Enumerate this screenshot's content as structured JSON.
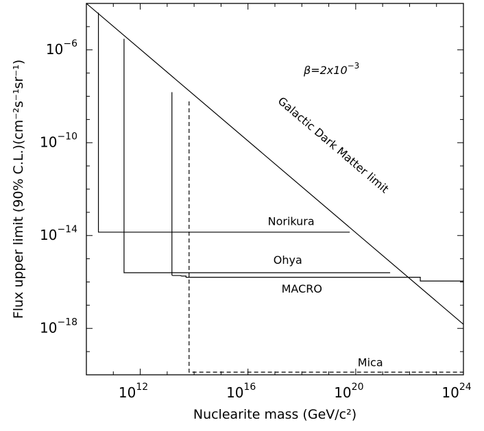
{
  "chart_data": {
    "type": "line",
    "x_scale": "log",
    "y_scale": "log",
    "xlim": [
      10000000000.0,
      1e+24
    ],
    "ylim": [
      1e-20,
      0.0001
    ],
    "grid": false,
    "xlabel": "Nuclearite mass (GeV/c²)",
    "ylabel": "Flux upper limit (90% C.L.)(cm⁻²s⁻¹sr⁻¹)",
    "x_ticks": [
      {
        "value": 1000000000000.0,
        "base": "10",
        "exp": "12"
      },
      {
        "value": 1e+16,
        "base": "10",
        "exp": "16"
      },
      {
        "value": 1e+20,
        "base": "10",
        "exp": "20"
      },
      {
        "value": 1e+24,
        "base": "10",
        "exp": "24"
      }
    ],
    "y_ticks": [
      {
        "value": 1e-06,
        "base": "10",
        "exp": "−6"
      },
      {
        "value": 1e-10,
        "base": "10",
        "exp": "−10"
      },
      {
        "value": 1e-14,
        "base": "10",
        "exp": "−14"
      },
      {
        "value": 1e-18,
        "base": "10",
        "exp": "−18"
      }
    ],
    "annotation": {
      "prefix": "β=2x10",
      "exp": "−3"
    },
    "series": [
      {
        "name": "Galactic Dark Matter limit",
        "style": "solid",
        "points": [
          [
            10000000000.0,
            0.0001
          ],
          [
            1e+24,
            1.5e-18
          ]
        ]
      },
      {
        "name": "Norikura",
        "style": "solid",
        "points": [
          [
            28000000000.0,
            4e-05
          ],
          [
            28000000000.0,
            1.4e-14
          ],
          [
            6e+19,
            1.4e-14
          ]
        ]
      },
      {
        "name": "Ohya",
        "style": "solid",
        "points": [
          [
            250000000000.0,
            3e-06
          ],
          [
            250000000000.0,
            2.5e-16
          ],
          [
            1.9e+21,
            2.5e-16
          ]
        ]
      },
      {
        "name": "MACRO",
        "style": "solid",
        "points": [
          [
            15000000000000.0,
            1.5e-08
          ],
          [
            15000000000000.0,
            2e-16
          ],
          [
            16000000000000.0,
            1.9e-16
          ],
          [
            30000000000000.0,
            1.9e-16
          ],
          [
            35000000000000.0,
            1.8e-16
          ],
          [
            50000000000000.0,
            1.8e-16
          ],
          [
            50000000000000.0,
            1.6e-16
          ],
          [
            2.5e+22,
            1.6e-16
          ],
          [
            2.5e+22,
            1.1e-16
          ],
          [
            1e+24,
            1.1e-16
          ]
        ]
      },
      {
        "name": "Mica",
        "style": "dashed",
        "points": [
          [
            65000000000000.0,
            6e-09
          ],
          [
            65000000000000.0,
            1.3e-20
          ],
          [
            1e+24,
            1.3e-20
          ]
        ]
      }
    ],
    "labels": [
      {
        "text": "Galactic Dark Matter limit",
        "x": 1.2e+19,
        "y": 6e-11,
        "rotate": true
      },
      {
        "text": "Norikura",
        "x": 4e+17,
        "y": 2.8e-14
      },
      {
        "text": "Ohya",
        "x": 3e+17,
        "y": 6e-16
      },
      {
        "text": "MACRO",
        "x": 1e+18,
        "y": 3.5e-17
      },
      {
        "text": "Mica",
        "x": 3.5e+20,
        "y": 2.3e-20
      }
    ]
  }
}
